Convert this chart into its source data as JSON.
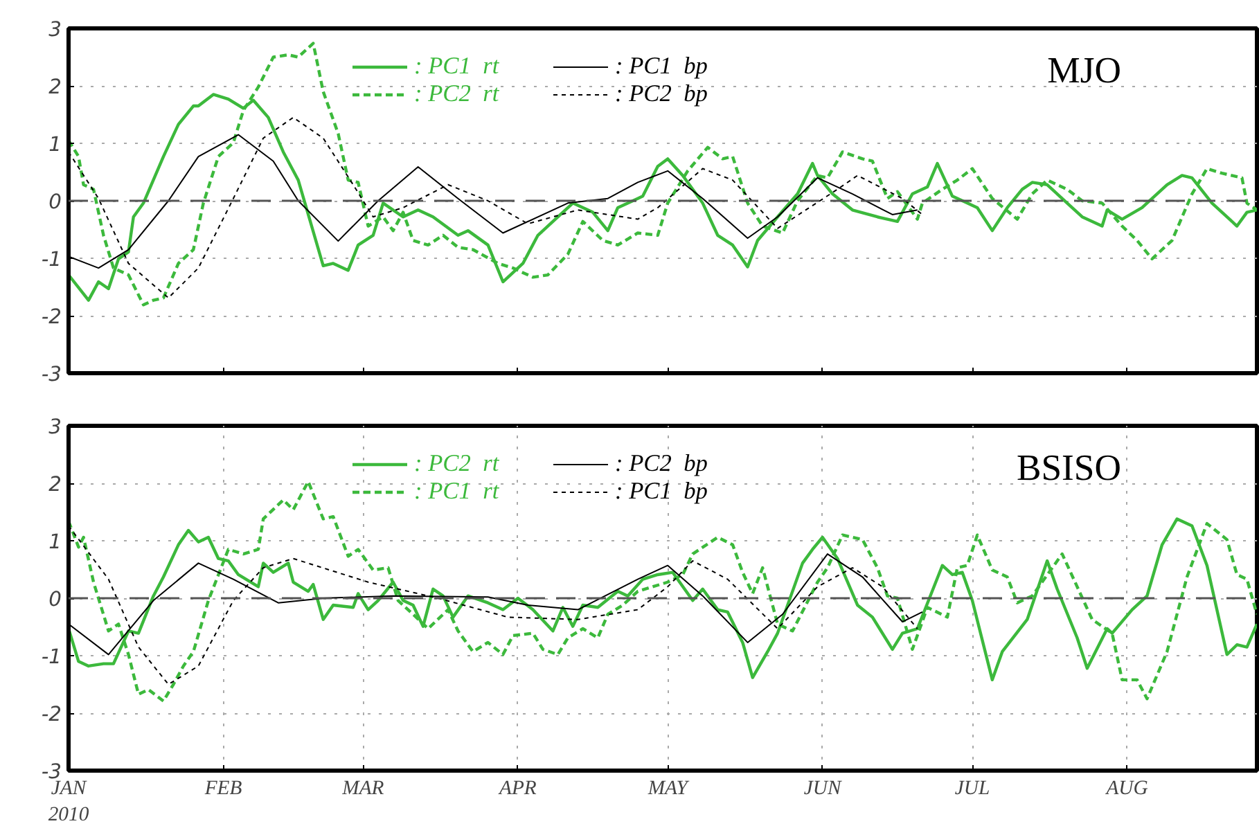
{
  "chart_data": [
    {
      "type": "line",
      "title": "MJO",
      "xlim": [
        "2010-01-01",
        "2010-08-27"
      ],
      "xticks": [
        {
          "value": "2010-01-01",
          "label": null
        },
        {
          "value": "2010-02-01",
          "label": null
        },
        {
          "value": "2010-03-01",
          "label": null
        },
        {
          "value": "2010-04-01",
          "label": null
        },
        {
          "value": "2010-05-01",
          "label": null
        },
        {
          "value": "2010-06-01",
          "label": null
        },
        {
          "value": "2010-07-01",
          "label": null
        },
        {
          "value": "2010-08-01",
          "label": null
        }
      ],
      "ylim": [
        -3,
        3
      ],
      "yticks": [
        -3,
        -2,
        -1,
        0,
        1,
        2,
        3
      ],
      "grid": "y",
      "tick_labels": "y",
      "legend": "top",
      "ref_lines": [
        {
          "axis": "y",
          "value": 0,
          "label": null,
          "color": "#555555",
          "line_style": "dashed"
        }
      ],
      "series": [
        {
          "name": ": PC1  rt",
          "color": "#3cb93c",
          "line_style": "solid",
          "x": [
            "2010-01-01",
            "2010-01-05",
            "2010-01-07",
            "2010-01-09",
            "2010-01-11",
            "2010-01-13",
            "2010-01-14",
            "2010-01-16",
            "2010-01-20",
            "2010-01-23",
            "2010-01-26",
            "2010-01-27",
            "2010-01-30",
            "2010-02-02",
            "2010-02-05",
            "2010-02-07",
            "2010-02-10",
            "2010-02-13",
            "2010-02-16",
            "2010-02-21",
            "2010-02-23",
            "2010-02-26",
            "2010-02-28",
            "2010-03-03",
            "2010-03-05",
            "2010-03-09",
            "2010-03-12",
            "2010-03-15",
            "2010-03-20",
            "2010-03-22",
            "2010-03-26",
            "2010-03-29",
            "2010-04-02",
            "2010-04-05",
            "2010-04-08",
            "2010-04-12",
            "2010-04-16",
            "2010-04-19",
            "2010-04-21",
            "2010-04-25",
            "2010-04-26",
            "2010-04-29",
            "2010-05-01",
            "2010-05-04",
            "2010-05-08",
            "2010-05-11",
            "2010-05-14",
            "2010-05-17",
            "2010-05-19",
            "2010-05-23",
            "2010-05-27",
            "2010-05-30",
            "2010-05-31",
            "2010-06-03",
            "2010-06-07",
            "2010-06-12",
            "2010-06-16",
            "2010-06-19",
            "2010-06-22",
            "2010-06-24",
            "2010-06-27",
            "2010-06-30",
            "2010-07-02",
            "2010-07-05",
            "2010-07-08",
            "2010-07-11",
            "2010-07-13",
            "2010-07-16",
            "2010-07-20",
            "2010-07-23",
            "2010-07-27",
            "2010-07-28",
            "2010-07-31",
            "2010-08-04",
            "2010-08-09",
            "2010-08-12",
            "2010-08-14",
            "2010-08-18",
            "2010-08-23",
            "2010-08-25",
            "2010-08-27"
          ],
          "values": [
            -1.29,
            -1.73,
            -1.41,
            -1.53,
            -1.01,
            -0.89,
            -0.28,
            -0.04,
            0.77,
            1.33,
            1.65,
            1.65,
            1.85,
            1.77,
            1.61,
            1.75,
            1.45,
            0.85,
            0.36,
            -1.13,
            -1.09,
            -1.21,
            -0.77,
            -0.6,
            -0.04,
            -0.28,
            -0.16,
            -0.28,
            -0.6,
            -0.52,
            -0.77,
            -1.41,
            -1.09,
            -0.6,
            -0.36,
            -0.04,
            -0.2,
            -0.52,
            -0.12,
            0.04,
            0.08,
            0.6,
            0.73,
            0.44,
            -0.04,
            -0.6,
            -0.77,
            -1.15,
            -0.69,
            -0.28,
            0.12,
            0.65,
            0.44,
            0.12,
            -0.16,
            -0.28,
            -0.36,
            0.12,
            0.24,
            0.65,
            0.08,
            -0.04,
            -0.12,
            -0.52,
            -0.12,
            0.2,
            0.32,
            0.28,
            -0.04,
            -0.28,
            -0.44,
            -0.16,
            -0.32,
            -0.12,
            0.28,
            0.44,
            0.4,
            -0.04,
            -0.44,
            -0.2,
            -0.16
          ]
        },
        {
          "name": ": PC2  rt",
          "color": "#3cb93c",
          "line_style": "dashed",
          "x": [
            "2010-01-01",
            "2010-01-03",
            "2010-01-04",
            "2010-01-06",
            "2010-01-08",
            "2010-01-10",
            "2010-01-13",
            "2010-01-16",
            "2010-01-18",
            "2010-01-20",
            "2010-01-23",
            "2010-01-26",
            "2010-01-28",
            "2010-01-31",
            "2010-02-03",
            "2010-02-05",
            "2010-02-08",
            "2010-02-11",
            "2010-02-14",
            "2010-02-16",
            "2010-02-19",
            "2010-02-21",
            "2010-02-24",
            "2010-02-26",
            "2010-02-28",
            "2010-03-02",
            "2010-03-05",
            "2010-03-07",
            "2010-03-09",
            "2010-03-11",
            "2010-03-14",
            "2010-03-17",
            "2010-03-20",
            "2010-03-23",
            "2010-03-28",
            "2010-03-31",
            "2010-04-04",
            "2010-04-07",
            "2010-04-11",
            "2010-04-14",
            "2010-04-18",
            "2010-04-21",
            "2010-04-25",
            "2010-04-29",
            "2010-05-01",
            "2010-05-05",
            "2010-05-09",
            "2010-05-12",
            "2010-05-14",
            "2010-05-17",
            "2010-05-20",
            "2010-05-24",
            "2010-05-27",
            "2010-05-31",
            "2010-06-02",
            "2010-06-05",
            "2010-06-09",
            "2010-06-11",
            "2010-06-14",
            "2010-06-16",
            "2010-06-20",
            "2010-06-21",
            "2010-06-25",
            "2010-06-28",
            "2010-07-01",
            "2010-07-05",
            "2010-07-10",
            "2010-07-13",
            "2010-07-16",
            "2010-07-20",
            "2010-07-23",
            "2010-07-27",
            "2010-07-31",
            "2010-08-03",
            "2010-08-06",
            "2010-08-10",
            "2010-08-14",
            "2010-08-17",
            "2010-08-20",
            "2010-08-24",
            "2010-08-25",
            "2010-08-27"
          ],
          "values": [
            1.05,
            0.77,
            0.28,
            0.2,
            -0.6,
            -1.17,
            -1.29,
            -1.81,
            -1.73,
            -1.69,
            -1.09,
            -0.85,
            -0.04,
            0.77,
            1.01,
            1.57,
            1.98,
            2.5,
            2.54,
            2.5,
            2.74,
            1.9,
            1.17,
            0.36,
            0.32,
            -0.44,
            -0.28,
            -0.52,
            -0.2,
            -0.69,
            -0.77,
            -0.6,
            -0.81,
            -0.85,
            -1.09,
            -1.17,
            -1.33,
            -1.29,
            -0.93,
            -0.36,
            -0.69,
            -0.77,
            -0.56,
            -0.6,
            -0.04,
            0.52,
            0.93,
            0.73,
            0.77,
            -0.04,
            -0.44,
            -0.56,
            0,
            0.44,
            0.4,
            0.85,
            0.73,
            0.69,
            0.04,
            0.16,
            -0.32,
            -0.04,
            0.2,
            0.36,
            0.56,
            0.04,
            -0.32,
            0.12,
            0.36,
            0.2,
            0,
            -0.04,
            -0.44,
            -0.69,
            -1.01,
            -0.69,
            0.12,
            0.56,
            0.48,
            0.4,
            -0.04,
            -0.16
          ]
        },
        {
          "name": ": PC1  bp",
          "color": "#000000",
          "line_style": "solid",
          "x": [
            "2010-01-01",
            "2010-01-07",
            "2010-01-13",
            "2010-01-21",
            "2010-01-27",
            "2010-02-04",
            "2010-02-11",
            "2010-02-16",
            "2010-02-24",
            "2010-03-04",
            "2010-03-12",
            "2010-03-20",
            "2010-03-29",
            "2010-04-11",
            "2010-04-19",
            "2010-04-25",
            "2010-05-01",
            "2010-05-08",
            "2010-05-17",
            "2010-05-23",
            "2010-05-31",
            "2010-06-07",
            "2010-06-15",
            "2010-06-20"
          ],
          "values": [
            -0.97,
            -1.17,
            -0.85,
            0,
            0.77,
            1.15,
            0.69,
            0,
            -0.7,
            0,
            0.59,
            0.04,
            -0.56,
            -0.04,
            0.04,
            0.32,
            0.52,
            0.04,
            -0.65,
            -0.28,
            0.4,
            0.12,
            -0.24,
            -0.16
          ]
        },
        {
          "name": ": PC2  bp",
          "color": "#000000",
          "line_style": "dashed",
          "x": [
            "2010-01-01",
            "2010-01-07",
            "2010-01-13",
            "2010-01-21",
            "2010-01-27",
            "2010-02-03",
            "2010-02-09",
            "2010-02-15",
            "2010-02-21",
            "2010-02-27",
            "2010-03-03",
            "2010-03-09",
            "2010-03-18",
            "2010-03-26",
            "2010-04-03",
            "2010-04-13",
            "2010-04-25",
            "2010-04-29",
            "2010-05-08",
            "2010-05-14",
            "2010-05-23",
            "2010-06-04",
            "2010-06-08",
            "2010-06-17",
            "2010-06-21"
          ],
          "values": [
            0.85,
            0.04,
            -1.09,
            -1.69,
            -1.17,
            0.04,
            1.09,
            1.45,
            1.09,
            0.28,
            -0.28,
            -0.12,
            0.28,
            0,
            -0.4,
            -0.16,
            -0.32,
            -0.12,
            0.56,
            0.36,
            -0.48,
            0.2,
            0.44,
            0.04,
            -0.24
          ]
        }
      ]
    },
    {
      "type": "line",
      "title": "BSISO",
      "xlim": [
        "2010-01-01",
        "2010-08-27"
      ],
      "xticks": [
        {
          "value": "2010-01-01",
          "label": "JAN\n2010"
        },
        {
          "value": "2010-02-01",
          "label": "FEB"
        },
        {
          "value": "2010-03-01",
          "label": "MAR"
        },
        {
          "value": "2010-04-01",
          "label": "APR"
        },
        {
          "value": "2010-05-01",
          "label": "MAY"
        },
        {
          "value": "2010-06-01",
          "label": "JUN"
        },
        {
          "value": "2010-07-01",
          "label": "JUL"
        },
        {
          "value": "2010-08-01",
          "label": "AUG"
        }
      ],
      "ylim": [
        -3,
        3
      ],
      "yticks": [
        -3,
        -2,
        -1,
        0,
        1,
        2,
        3
      ],
      "grid": true,
      "legend": "top",
      "ref_lines": [
        {
          "axis": "y",
          "value": 0,
          "label": null,
          "color": "#555555",
          "line_style": "dashed"
        }
      ],
      "series": [
        {
          "name": ": PC2  rt",
          "color": "#3cb93c",
          "line_style": "solid",
          "x": [
            "2010-01-01",
            "2010-01-03",
            "2010-01-05",
            "2010-01-08",
            "2010-01-10",
            "2010-01-13",
            "2010-01-15",
            "2010-01-18",
            "2010-01-20",
            "2010-01-23",
            "2010-01-25",
            "2010-01-27",
            "2010-01-29",
            "2010-01-31",
            "2010-02-02",
            "2010-02-04",
            "2010-02-08",
            "2010-02-09",
            "2010-02-11",
            "2010-02-14",
            "2010-02-15",
            "2010-02-18",
            "2010-02-19",
            "2010-02-21",
            "2010-02-23",
            "2010-02-27",
            "2010-02-28",
            "2010-03-02",
            "2010-03-04",
            "2010-03-07",
            "2010-03-09",
            "2010-03-11",
            "2010-03-13",
            "2010-03-15",
            "2010-03-17",
            "2010-03-19",
            "2010-03-22",
            "2010-03-26",
            "2010-03-29",
            "2010-04-01",
            "2010-04-04",
            "2010-04-08",
            "2010-04-10",
            "2010-04-12",
            "2010-04-14",
            "2010-04-17",
            "2010-04-21",
            "2010-04-23",
            "2010-04-26",
            "2010-04-29",
            "2010-05-02",
            "2010-05-06",
            "2010-05-08",
            "2010-05-11",
            "2010-05-13",
            "2010-05-16",
            "2010-05-18",
            "2010-05-21",
            "2010-05-23",
            "2010-05-28",
            "2010-05-30",
            "2010-06-01",
            "2010-06-04",
            "2010-06-08",
            "2010-06-11",
            "2010-06-15",
            "2010-06-17",
            "2010-06-20",
            "2010-06-25",
            "2010-06-27",
            "2010-06-29",
            "2010-07-01",
            "2010-07-05",
            "2010-07-07",
            "2010-07-12",
            "2010-07-16",
            "2010-07-18",
            "2010-07-22",
            "2010-07-24",
            "2010-07-28",
            "2010-07-29",
            "2010-08-02",
            "2010-08-05",
            "2010-08-08",
            "2010-08-11",
            "2010-08-14",
            "2010-08-17",
            "2010-08-21",
            "2010-08-23",
            "2010-08-25",
            "2010-08-27"
          ],
          "values": [
            -0.53,
            -1.1,
            -1.18,
            -1.14,
            -1.14,
            -0.57,
            -0.61,
            0.04,
            0.37,
            0.93,
            1.18,
            0.98,
            1.06,
            0.69,
            0.65,
            0.41,
            0.2,
            0.61,
            0.45,
            0.61,
            0.28,
            0.12,
            0.24,
            -0.37,
            -0.12,
            -0.16,
            0.08,
            -0.2,
            -0.04,
            0.28,
            -0.04,
            -0.12,
            -0.49,
            0.16,
            0.04,
            -0.33,
            0.04,
            -0.08,
            -0.2,
            0,
            -0.2,
            -0.57,
            -0.16,
            -0.49,
            -0.12,
            -0.16,
            0.12,
            0.04,
            0.33,
            0.41,
            0.45,
            -0.04,
            0.16,
            -0.2,
            -0.24,
            -0.77,
            -1.38,
            -0.93,
            -0.61,
            0.61,
            0.85,
            1.06,
            0.69,
            -0.12,
            -0.33,
            -0.89,
            -0.61,
            -0.53,
            0.57,
            0.41,
            0.45,
            -0.04,
            -1.42,
            -0.93,
            -0.37,
            0.65,
            0.16,
            -0.69,
            -1.22,
            -0.53,
            -0.61,
            -0.2,
            0.04,
            0.93,
            1.38,
            1.26,
            0.57,
            -0.98,
            -0.81,
            -0.85,
            -0.45
          ]
        },
        {
          "name": ": PC1  rt",
          "color": "#3cb93c",
          "line_style": "dashed",
          "x": [
            "2010-01-01",
            "2010-01-03",
            "2010-01-04",
            "2010-01-06",
            "2010-01-09",
            "2010-01-11",
            "2010-01-13",
            "2010-01-15",
            "2010-01-17",
            "2010-01-20",
            "2010-01-22",
            "2010-01-24",
            "2010-01-26",
            "2010-01-29",
            "2010-02-02",
            "2010-02-05",
            "2010-02-08",
            "2010-02-09",
            "2010-02-13",
            "2010-02-15",
            "2010-02-18",
            "2010-02-21",
            "2010-02-23",
            "2010-02-26",
            "2010-02-28",
            "2010-03-03",
            "2010-03-06",
            "2010-03-08",
            "2010-03-11",
            "2010-03-14",
            "2010-03-18",
            "2010-03-20",
            "2010-03-23",
            "2010-03-26",
            "2010-03-29",
            "2010-03-31",
            "2010-04-04",
            "2010-04-06",
            "2010-04-09",
            "2010-04-11",
            "2010-04-14",
            "2010-04-17",
            "2010-04-19",
            "2010-04-22",
            "2010-04-25",
            "2010-05-01",
            "2010-05-04",
            "2010-05-06",
            "2010-05-11",
            "2010-05-14",
            "2010-05-16",
            "2010-05-18",
            "2010-05-20",
            "2010-05-23",
            "2010-05-26",
            "2010-05-31",
            "2010-06-02",
            "2010-06-05",
            "2010-06-09",
            "2010-06-12",
            "2010-06-14",
            "2010-06-16",
            "2010-06-19",
            "2010-06-22",
            "2010-06-26",
            "2010-06-28",
            "2010-06-30",
            "2010-07-02",
            "2010-07-05",
            "2010-07-08",
            "2010-07-10",
            "2010-07-13",
            "2010-07-19",
            "2010-07-22",
            "2010-07-25",
            "2010-07-29",
            "2010-07-31",
            "2010-08-03",
            "2010-08-05",
            "2010-08-09",
            "2010-08-13",
            "2010-08-17",
            "2010-08-21",
            "2010-08-23",
            "2010-08-25",
            "2010-08-27"
          ],
          "values": [
            1.34,
            0.89,
            1.06,
            0.28,
            -0.57,
            -0.45,
            -0.98,
            -1.67,
            -1.59,
            -1.79,
            -1.5,
            -1.18,
            -0.93,
            -0.04,
            0.85,
            0.77,
            0.85,
            1.38,
            1.71,
            1.54,
            2.03,
            1.38,
            1.42,
            0.73,
            0.85,
            0.49,
            0.53,
            -0.04,
            -0.28,
            -0.53,
            -0.2,
            -0.57,
            -0.93,
            -0.77,
            -0.98,
            -0.65,
            -0.61,
            -0.89,
            -0.98,
            -0.69,
            -0.53,
            -0.69,
            -0.28,
            -0.12,
            0.12,
            0.28,
            0.41,
            0.77,
            1.06,
            0.93,
            0.45,
            0.08,
            0.53,
            -0.45,
            -0.57,
            0.28,
            0.53,
            1.1,
            1.02,
            0.53,
            0.04,
            0,
            -0.89,
            -0.16,
            -0.33,
            0.53,
            0.57,
            1.1,
            0.49,
            0.37,
            -0.08,
            0.04,
            0.77,
            0.2,
            -0.37,
            -0.61,
            -1.42,
            -1.42,
            -1.75,
            -0.93,
            0.37,
            1.3,
            1.02,
            0.41,
            0.33,
            -0.28
          ]
        },
        {
          "name": ": PC2  bp",
          "color": "#000000",
          "line_style": "solid",
          "x": [
            "2010-01-01",
            "2010-01-09",
            "2010-01-18",
            "2010-01-27",
            "2010-02-03",
            "2010-02-12",
            "2010-02-21",
            "2010-03-07",
            "2010-03-26",
            "2010-04-03",
            "2010-04-13",
            "2010-04-25",
            "2010-05-01",
            "2010-05-08",
            "2010-05-17",
            "2010-05-24",
            "2010-06-02",
            "2010-06-09",
            "2010-06-17",
            "2010-06-21"
          ],
          "values": [
            -0.45,
            -0.98,
            -0.04,
            0.61,
            0.33,
            -0.08,
            0,
            0.04,
            0.02,
            -0.12,
            -0.2,
            0.33,
            0.57,
            0.04,
            -0.77,
            -0.28,
            0.77,
            0.37,
            -0.41,
            -0.24
          ]
        },
        {
          "name": ": PC1  bp",
          "color": "#000000",
          "line_style": "dashed",
          "x": [
            "2010-01-01",
            "2010-01-09",
            "2010-01-15",
            "2010-01-21",
            "2010-01-27",
            "2010-02-03",
            "2010-02-09",
            "2010-02-15",
            "2010-03-02",
            "2010-03-16",
            "2010-03-30",
            "2010-04-13",
            "2010-04-25",
            "2010-05-01",
            "2010-05-06",
            "2010-05-13",
            "2010-05-23",
            "2010-05-31",
            "2010-06-07",
            "2010-06-13",
            "2010-06-20"
          ],
          "values": [
            1.26,
            0.33,
            -0.85,
            -1.5,
            -1.18,
            -0.04,
            0.53,
            0.69,
            0.28,
            0,
            -0.33,
            -0.37,
            -0.2,
            0.2,
            0.65,
            0.33,
            -0.53,
            0.2,
            0.53,
            0.2,
            -0.53
          ]
        }
      ]
    }
  ]
}
